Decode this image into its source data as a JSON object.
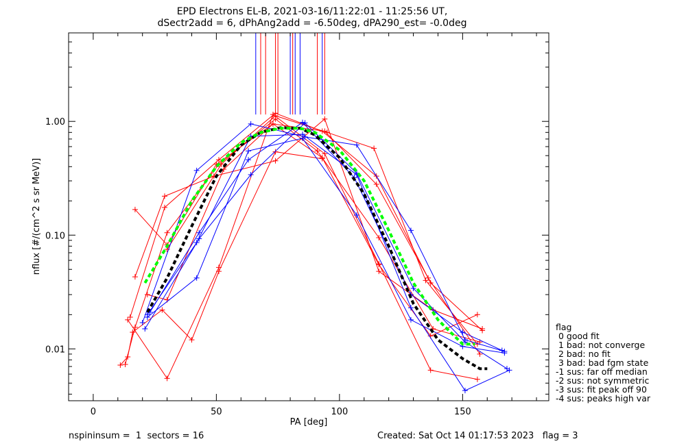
{
  "chart_data": {
    "type": "line",
    "title_line1": "EPD Electrons EL-B, 2021-03-16/11:22:01 - 11:25:56 UT,",
    "title_line2": "dSectr2add = 6, dPhAng2add = -6.50deg, dPA290_est=  -0.0deg",
    "xlabel": "PA [deg]",
    "ylabel": "nflux [#/(cm^2 s sr MeV)]",
    "xlim": [
      -10,
      185
    ],
    "ylim": [
      0.0035,
      6.0
    ],
    "yscale": "log",
    "xticks": [
      0,
      50,
      100,
      150
    ],
    "xtick_labels": [
      "0",
      "50",
      "100",
      "150"
    ],
    "yticks": [
      0.01,
      0.1,
      1.0
    ],
    "ytick_labels": [
      "0.01",
      "0.10",
      "1.00"
    ],
    "colors": {
      "red": "#ff0000",
      "blue": "#0000ff",
      "black": "#000000",
      "green": "#00ff00"
    },
    "vertical_markers": {
      "red": [
        68,
        70,
        74,
        75,
        81,
        91,
        94
      ],
      "blue": [
        66,
        80,
        82,
        84,
        93
      ],
      "y_bottom": 1.15
    },
    "red_series": [
      {
        "x": [
          11,
          14,
          16,
          28,
          40,
          51,
          74,
          93
        ],
        "y": [
          0.0072,
          0.0085,
          0.014,
          0.022,
          0.012,
          0.048,
          0.54,
          0.47
        ]
      },
      {
        "x": [
          13,
          17,
          30,
          51,
          74,
          91,
          116,
          138,
          157
        ],
        "y": [
          0.0073,
          0.0155,
          0.105,
          0.42,
          1.05,
          0.55,
          0.095,
          0.015,
          0.0115
        ]
      },
      {
        "x": [
          14,
          30,
          51,
          73,
          94,
          116,
          137,
          156
        ],
        "y": [
          0.018,
          0.0055,
          0.052,
          1.15,
          0.52,
          0.056,
          0.0065,
          0.0054
        ]
      },
      {
        "x": [
          15,
          29,
          51,
          74,
          93,
          115,
          137,
          158
        ],
        "y": [
          0.019,
          0.175,
          0.46,
          1.18,
          0.82,
          0.33,
          0.038,
          0.0145
        ]
      },
      {
        "x": [
          17,
          30,
          50,
          73,
          94,
          115,
          136,
          157
        ],
        "y": [
          0.168,
          0.082,
          0.42,
          0.95,
          0.82,
          0.28,
          0.042,
          0.009
        ]
      },
      {
        "x": [
          17,
          29,
          49,
          74,
          94,
          116,
          138,
          158
        ],
        "y": [
          0.043,
          0.22,
          0.33,
          0.45,
          1.05,
          0.048,
          0.022,
          0.015
        ]
      },
      {
        "x": [
          22,
          30,
          53,
          73,
          93,
          116,
          137,
          156
        ],
        "y": [
          0.03,
          0.027,
          0.38,
          0.95,
          0.48,
          0.055,
          0.013,
          0.02
        ]
      },
      {
        "x": [
          30,
          52,
          74,
          95,
          114,
          135,
          156
        ],
        "y": [
          0.075,
          0.42,
          1.12,
          0.8,
          0.58,
          0.04,
          0.011
        ]
      }
    ],
    "blue_series": [
      {
        "x": [
          20,
          42,
          64,
          86,
          107,
          129,
          151,
          167
        ],
        "y": [
          0.017,
          0.37,
          0.95,
          0.73,
          0.62,
          0.11,
          0.012,
          0.0095
        ]
      },
      {
        "x": [
          21,
          43,
          64,
          86,
          107,
          130,
          151,
          168
        ],
        "y": [
          0.015,
          0.093,
          0.34,
          0.97,
          0.35,
          0.034,
          0.0115,
          0.0067
        ]
      },
      {
        "x": [
          22,
          42,
          64,
          85,
          107,
          129,
          151,
          169
        ],
        "y": [
          0.02,
          0.086,
          0.74,
          0.77,
          0.34,
          0.023,
          0.0043,
          0.0065
        ]
      },
      {
        "x": [
          22,
          42,
          63,
          85,
          107,
          129,
          150,
          167
        ],
        "y": [
          0.019,
          0.042,
          0.55,
          0.71,
          0.15,
          0.018,
          0.0105,
          0.0092
        ]
      },
      {
        "x": [
          23,
          43,
          63,
          85,
          106,
          129,
          150,
          166
        ],
        "y": [
          0.021,
          0.105,
          0.46,
          0.98,
          0.32,
          0.03,
          0.014,
          0.0097
        ]
      }
    ],
    "fit_curves": [
      {
        "color": "black",
        "x": [
          22,
          30,
          40,
          50,
          60,
          68,
          76,
          84,
          90,
          100,
          110,
          120,
          130,
          140,
          150,
          157,
          160
        ],
        "y": [
          0.021,
          0.042,
          0.12,
          0.33,
          0.62,
          0.8,
          0.88,
          0.87,
          0.76,
          0.48,
          0.23,
          0.08,
          0.025,
          0.012,
          0.0082,
          0.0067,
          0.0067
        ]
      },
      {
        "color": "green",
        "x": [
          21,
          30,
          40,
          50,
          60,
          68,
          76,
          84,
          90,
          100,
          110,
          120,
          130,
          140,
          150,
          155
        ],
        "y": [
          0.038,
          0.08,
          0.2,
          0.4,
          0.65,
          0.8,
          0.87,
          0.87,
          0.8,
          0.56,
          0.3,
          0.11,
          0.038,
          0.018,
          0.011,
          0.011
        ]
      }
    ],
    "legend": {
      "title": "flag",
      "entries": [
        " 0 good fit",
        " 1 bad: not converge",
        " 2 bad: no fit",
        " 3 bad: bad fgm state",
        "-1 sus: far off median",
        "-2 sus: not symmetric",
        "-3 sus: fit peak off 90",
        "-4 sus: peaks high var"
      ]
    },
    "footer": {
      "left": "nspininsum =  1  sectors = 16",
      "right": "Created: Sat Oct 14 01:17:53 2023   flag = 3"
    }
  }
}
